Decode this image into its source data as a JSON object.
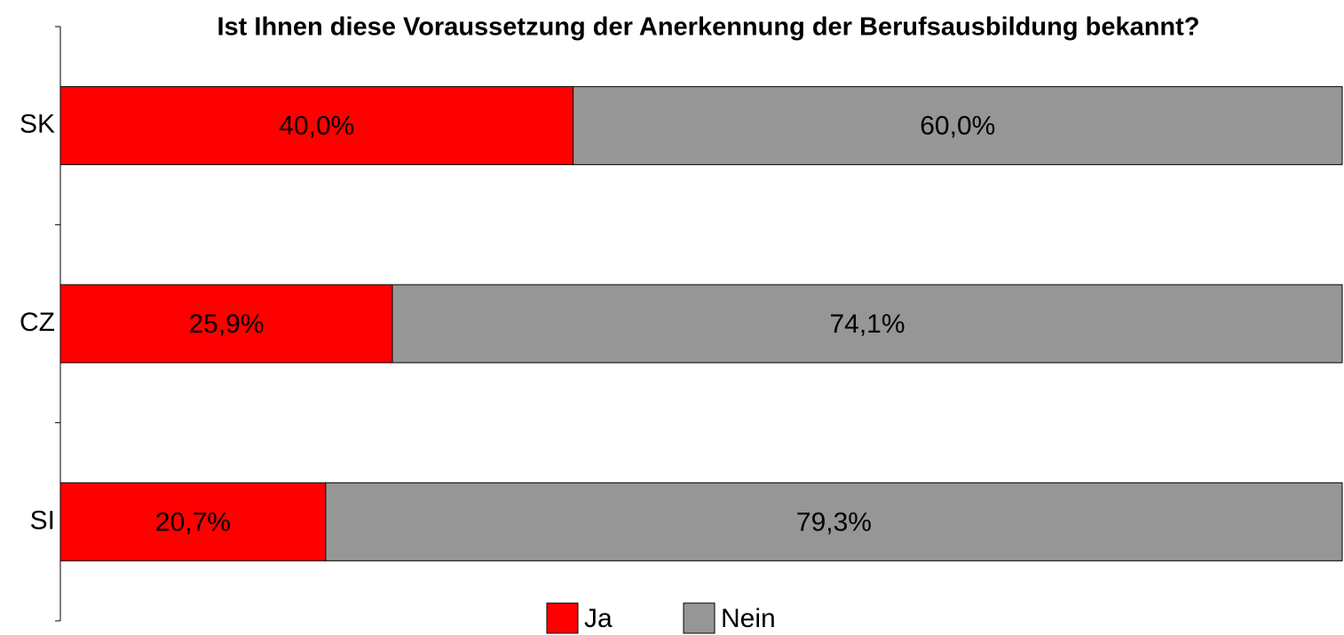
{
  "chart_data": {
    "type": "stacked_bar_horizontal_percent",
    "title": "Ist Ihnen diese Voraussetzung der Anerkennung der Berufsausbildung bekannt?",
    "categories": [
      "SK",
      "CZ",
      "SI"
    ],
    "series": [
      {
        "name": "Ja",
        "color": "#ff0000",
        "values": [
          40.0,
          25.9,
          20.7
        ],
        "value_labels": [
          "40,0%",
          "25,9%",
          "20,7%"
        ]
      },
      {
        "name": "Nein",
        "color": "#969696",
        "values": [
          60.0,
          74.1,
          79.3
        ],
        "value_labels": [
          "60,0%",
          "74,1%",
          "79,3%"
        ]
      }
    ],
    "legend": "bottom"
  }
}
